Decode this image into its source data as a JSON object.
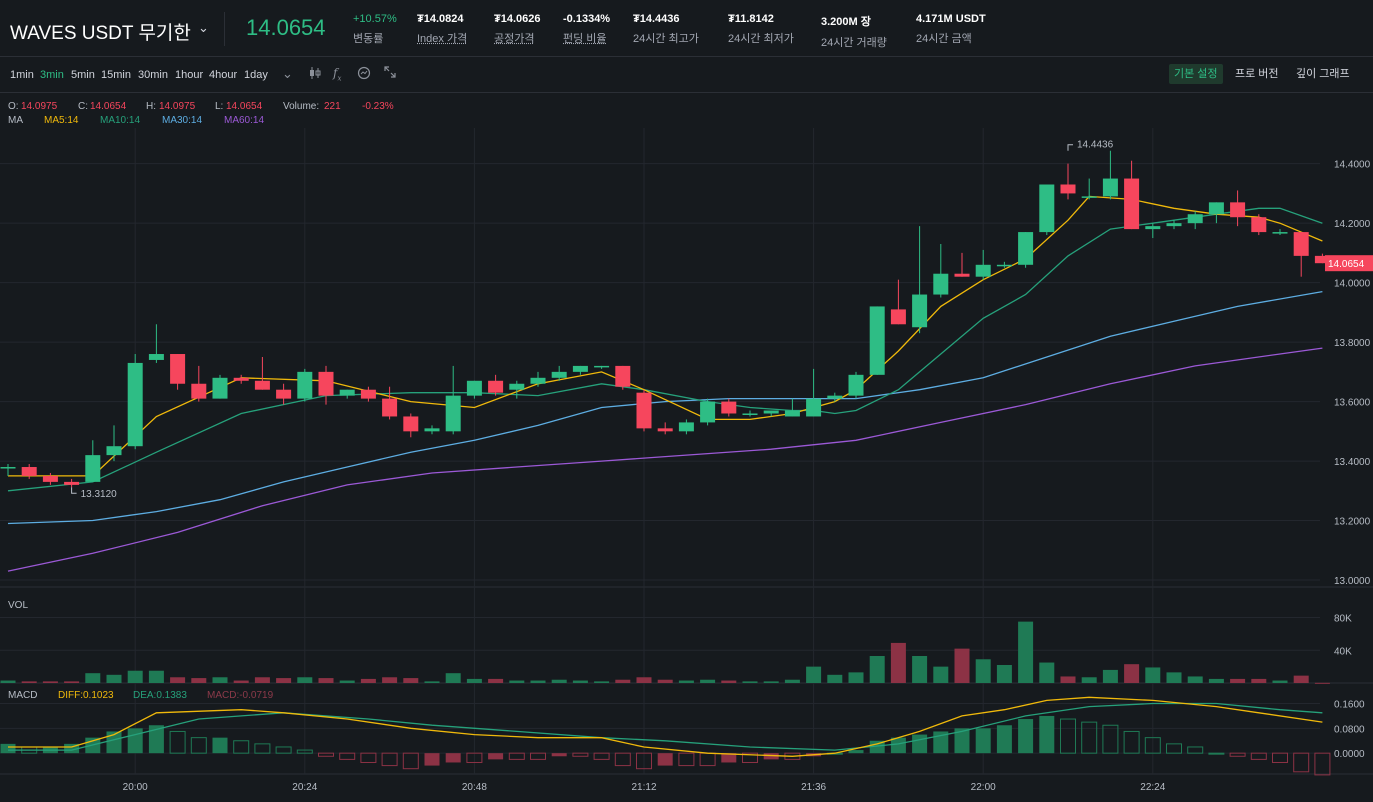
{
  "header": {
    "symbol": "WAVES USDT 무기한",
    "last_price": "14.0654",
    "stats": [
      {
        "value": "+10.57%",
        "label": "변동률"
      },
      {
        "value": "₮14.0824",
        "label": "Index 가격"
      },
      {
        "value": "₮14.0626",
        "label": "공정가격"
      },
      {
        "value": "-0.1334%",
        "label": "펀딩 비율"
      },
      {
        "value": "₮14.4436",
        "label": "24시간 최고가"
      },
      {
        "value": "₮11.8142",
        "label": "24시간 최저가"
      },
      {
        "value": "3.200M 장",
        "label": "24시간 거래량"
      },
      {
        "value": "4.171M USDT",
        "label": "24시간 금액"
      }
    ]
  },
  "toolbar": {
    "timeframes": [
      "1min",
      "3min",
      "5min",
      "15min",
      "30min",
      "1hour",
      "4hour",
      "1day"
    ],
    "active_timeframe": "3min",
    "icons": [
      "chevron-down-icon",
      "candle-type-icon",
      "indicator-fx-icon",
      "settings-icon",
      "fullscreen-icon"
    ],
    "views": [
      "기본 설정",
      "프로 버전",
      "깊이 그래프"
    ],
    "active_view": "기본 설정"
  },
  "ohlc_legend": {
    "o_label": "O:",
    "o": "14.0975",
    "c_label": "C:",
    "c": "14.0654",
    "h_label": "H:",
    "h": "14.0975",
    "l_label": "L:",
    "l": "14.0654",
    "vol_label": "Volume:",
    "vol": "221",
    "change": "-0.23%"
  },
  "ma_legend": {
    "label": "MA",
    "items": [
      {
        "text": "MA5:14",
        "color": "#f0b90b"
      },
      {
        "text": "MA10:14",
        "color": "#26a17b"
      },
      {
        "text": "MA30:14",
        "color": "#5dade2"
      },
      {
        "text": "MA60:14",
        "color": "#9b59d6"
      }
    ]
  },
  "vol_label": "VOL",
  "macd_legend": {
    "label": "MACD",
    "diff": "DIFF:0.1023",
    "dea": "DEA:0.1383",
    "macd": "MACD:-0.0719"
  },
  "colors": {
    "up": "#2ebd85",
    "down": "#f6465d",
    "ma5": "#f0b90b",
    "ma10": "#26a17b",
    "ma30": "#5dade2",
    "ma60": "#9b59d6",
    "diff": "#f0b90b",
    "dea": "#26a17b",
    "grid": "#23272e",
    "axis_text": "#b7bdc6"
  },
  "chart_data": {
    "type": "candlestick",
    "price_axis": {
      "ticks": [
        13.0,
        13.2,
        13.4,
        13.6,
        13.8,
        14.0,
        14.2,
        14.4
      ],
      "tick_labels": [
        "13.0000",
        "13.2000",
        "13.4000",
        "13.6000",
        "13.8000",
        "14.0000",
        "14.2000",
        "14.4000"
      ],
      "ylim": [
        12.99,
        14.52
      ]
    },
    "volume_axis": {
      "ticks": [
        40000,
        80000
      ],
      "tick_labels": [
        "40K",
        "80K"
      ],
      "ylim": [
        0,
        110000
      ]
    },
    "macd_axis": {
      "ticks": [
        0.0,
        0.08,
        0.16
      ],
      "tick_labels": [
        "0.0000",
        "0.0800",
        "0.1600"
      ],
      "ylim": [
        -0.08,
        0.21
      ]
    },
    "time_axis": {
      "labels": [
        "20:00",
        "20:24",
        "20:48",
        "21:12",
        "21:36",
        "22:00",
        "22:24"
      ],
      "label_candle_index": [
        6,
        14,
        22,
        30,
        38,
        46,
        54
      ]
    },
    "last_price_label": "14.0654",
    "high_marker": {
      "label": "14.4436",
      "value": 14.4436,
      "candle_index": 50
    },
    "low_marker": {
      "label": "13.3120",
      "value": 13.312,
      "candle_index": 3
    },
    "candles": [
      {
        "o": 13.38,
        "h": 13.39,
        "l": 13.35,
        "c": 13.38,
        "v": 3000
      },
      {
        "o": 13.38,
        "h": 13.39,
        "l": 13.34,
        "c": 13.35,
        "v": 2000
      },
      {
        "o": 13.35,
        "h": 13.36,
        "l": 13.32,
        "c": 13.33,
        "v": 2000
      },
      {
        "o": 13.33,
        "h": 13.34,
        "l": 13.312,
        "c": 13.32,
        "v": 2000
      },
      {
        "o": 13.33,
        "h": 13.47,
        "l": 13.33,
        "c": 13.42,
        "v": 12000
      },
      {
        "o": 13.42,
        "h": 13.52,
        "l": 13.4,
        "c": 13.45,
        "v": 10000
      },
      {
        "o": 13.45,
        "h": 13.76,
        "l": 13.44,
        "c": 13.73,
        "v": 15000
      },
      {
        "o": 13.74,
        "h": 13.86,
        "l": 13.73,
        "c": 13.76,
        "v": 15000
      },
      {
        "o": 13.76,
        "h": 13.76,
        "l": 13.64,
        "c": 13.66,
        "v": 7000
      },
      {
        "o": 13.66,
        "h": 13.72,
        "l": 13.6,
        "c": 13.61,
        "v": 6000
      },
      {
        "o": 13.61,
        "h": 13.69,
        "l": 13.61,
        "c": 13.68,
        "v": 7000
      },
      {
        "o": 13.68,
        "h": 13.69,
        "l": 13.66,
        "c": 13.67,
        "v": 3000
      },
      {
        "o": 13.67,
        "h": 13.75,
        "l": 13.64,
        "c": 13.64,
        "v": 7000
      },
      {
        "o": 13.64,
        "h": 13.66,
        "l": 13.59,
        "c": 13.61,
        "v": 6000
      },
      {
        "o": 13.61,
        "h": 13.71,
        "l": 13.6,
        "c": 13.7,
        "v": 7000
      },
      {
        "o": 13.7,
        "h": 13.72,
        "l": 13.59,
        "c": 13.62,
        "v": 6000
      },
      {
        "o": 13.62,
        "h": 13.64,
        "l": 13.61,
        "c": 13.64,
        "v": 3000
      },
      {
        "o": 13.64,
        "h": 13.65,
        "l": 13.6,
        "c": 13.61,
        "v": 5000
      },
      {
        "o": 13.61,
        "h": 13.65,
        "l": 13.54,
        "c": 13.55,
        "v": 7000
      },
      {
        "o": 13.55,
        "h": 13.56,
        "l": 13.48,
        "c": 13.5,
        "v": 6000
      },
      {
        "o": 13.5,
        "h": 13.52,
        "l": 13.49,
        "c": 13.51,
        "v": 2000
      },
      {
        "o": 13.5,
        "h": 13.72,
        "l": 13.49,
        "c": 13.62,
        "v": 12000
      },
      {
        "o": 13.62,
        "h": 13.67,
        "l": 13.61,
        "c": 13.67,
        "v": 5000
      },
      {
        "o": 13.67,
        "h": 13.69,
        "l": 13.62,
        "c": 13.63,
        "v": 5000
      },
      {
        "o": 13.64,
        "h": 13.67,
        "l": 13.61,
        "c": 13.66,
        "v": 3000
      },
      {
        "o": 13.66,
        "h": 13.7,
        "l": 13.65,
        "c": 13.68,
        "v": 3000
      },
      {
        "o": 13.68,
        "h": 13.72,
        "l": 13.67,
        "c": 13.7,
        "v": 4000
      },
      {
        "o": 13.7,
        "h": 13.72,
        "l": 13.69,
        "c": 13.72,
        "v": 3000
      },
      {
        "o": 13.72,
        "h": 13.72,
        "l": 13.71,
        "c": 13.72,
        "v": 2000
      },
      {
        "o": 13.72,
        "h": 13.72,
        "l": 13.64,
        "c": 13.65,
        "v": 4000
      },
      {
        "o": 13.63,
        "h": 13.64,
        "l": 13.5,
        "c": 13.51,
        "v": 7000
      },
      {
        "o": 13.51,
        "h": 13.53,
        "l": 13.49,
        "c": 13.5,
        "v": 4000
      },
      {
        "o": 13.5,
        "h": 13.54,
        "l": 13.49,
        "c": 13.53,
        "v": 3000
      },
      {
        "o": 13.53,
        "h": 13.61,
        "l": 13.52,
        "c": 13.6,
        "v": 4000
      },
      {
        "o": 13.6,
        "h": 13.61,
        "l": 13.55,
        "c": 13.56,
        "v": 3000
      },
      {
        "o": 13.56,
        "h": 13.57,
        "l": 13.55,
        "c": 13.56,
        "v": 2000
      },
      {
        "o": 13.56,
        "h": 13.57,
        "l": 13.55,
        "c": 13.57,
        "v": 2000
      },
      {
        "o": 13.55,
        "h": 13.61,
        "l": 13.55,
        "c": 13.57,
        "v": 4000
      },
      {
        "o": 13.55,
        "h": 13.71,
        "l": 13.55,
        "c": 13.61,
        "v": 20000
      },
      {
        "o": 13.61,
        "h": 13.63,
        "l": 13.6,
        "c": 13.62,
        "v": 10000
      },
      {
        "o": 13.62,
        "h": 13.7,
        "l": 13.61,
        "c": 13.69,
        "v": 13000
      },
      {
        "o": 13.69,
        "h": 13.92,
        "l": 13.69,
        "c": 13.92,
        "v": 33000
      },
      {
        "o": 13.91,
        "h": 14.01,
        "l": 13.86,
        "c": 13.86,
        "v": 49000
      },
      {
        "o": 13.85,
        "h": 14.19,
        "l": 13.83,
        "c": 13.96,
        "v": 33000
      },
      {
        "o": 13.96,
        "h": 14.13,
        "l": 13.95,
        "c": 14.03,
        "v": 20000
      },
      {
        "o": 14.03,
        "h": 14.1,
        "l": 14.02,
        "c": 14.02,
        "v": 42000
      },
      {
        "o": 14.02,
        "h": 14.11,
        "l": 14.01,
        "c": 14.06,
        "v": 29000
      },
      {
        "o": 14.06,
        "h": 14.07,
        "l": 14.05,
        "c": 14.06,
        "v": 22000
      },
      {
        "o": 14.06,
        "h": 14.17,
        "l": 14.05,
        "c": 14.17,
        "v": 75000
      },
      {
        "o": 14.17,
        "h": 14.32,
        "l": 14.16,
        "c": 14.33,
        "v": 25000
      },
      {
        "o": 14.33,
        "h": 14.4,
        "l": 14.28,
        "c": 14.3,
        "v": 8000
      },
      {
        "o": 14.29,
        "h": 14.35,
        "l": 14.28,
        "c": 14.29,
        "v": 7000
      },
      {
        "o": 14.29,
        "h": 14.4436,
        "l": 14.28,
        "c": 14.35,
        "v": 16000
      },
      {
        "o": 14.35,
        "h": 14.41,
        "l": 14.18,
        "c": 14.18,
        "v": 23000
      },
      {
        "o": 14.18,
        "h": 14.2,
        "l": 14.15,
        "c": 14.19,
        "v": 19000
      },
      {
        "o": 14.19,
        "h": 14.21,
        "l": 14.18,
        "c": 14.2,
        "v": 13000
      },
      {
        "o": 14.2,
        "h": 14.24,
        "l": 14.18,
        "c": 14.23,
        "v": 8000
      },
      {
        "o": 14.23,
        "h": 14.27,
        "l": 14.2,
        "c": 14.27,
        "v": 5000
      },
      {
        "o": 14.27,
        "h": 14.31,
        "l": 14.19,
        "c": 14.22,
        "v": 5000
      },
      {
        "o": 14.22,
        "h": 14.23,
        "l": 14.16,
        "c": 14.17,
        "v": 5000
      },
      {
        "o": 14.17,
        "h": 14.18,
        "l": 14.16,
        "c": 14.17,
        "v": 3000
      },
      {
        "o": 14.17,
        "h": 14.17,
        "l": 14.02,
        "c": 14.09,
        "v": 9000
      },
      {
        "o": 14.09,
        "h": 14.0975,
        "l": 14.0654,
        "c": 14.0654,
        "v": 221
      }
    ],
    "ma5": [
      [
        0,
        13.35
      ],
      [
        4,
        13.35
      ],
      [
        7,
        13.55
      ],
      [
        11,
        13.68
      ],
      [
        15,
        13.67
      ],
      [
        19,
        13.6
      ],
      [
        22,
        13.58
      ],
      [
        25,
        13.66
      ],
      [
        28,
        13.7
      ],
      [
        30,
        13.64
      ],
      [
        33,
        13.54
      ],
      [
        35,
        13.54
      ],
      [
        37,
        13.56
      ],
      [
        38,
        13.58
      ],
      [
        39,
        13.6
      ],
      [
        40,
        13.64
      ],
      [
        42,
        13.77
      ],
      [
        44,
        13.92
      ],
      [
        46,
        14.01
      ],
      [
        48,
        14.08
      ],
      [
        50,
        14.21
      ],
      [
        51,
        14.29
      ],
      [
        53,
        14.28
      ],
      [
        55,
        14.25
      ],
      [
        57,
        14.23
      ],
      [
        59,
        14.22
      ],
      [
        60,
        14.2
      ],
      [
        62,
        14.14
      ]
    ],
    "ma10": [
      [
        0,
        13.3
      ],
      [
        4,
        13.33
      ],
      [
        7,
        13.43
      ],
      [
        11,
        13.56
      ],
      [
        15,
        13.62
      ],
      [
        19,
        13.63
      ],
      [
        22,
        13.63
      ],
      [
        25,
        13.62
      ],
      [
        28,
        13.66
      ],
      [
        30,
        13.64
      ],
      [
        33,
        13.6
      ],
      [
        35,
        13.58
      ],
      [
        37,
        13.57
      ],
      [
        38,
        13.57
      ],
      [
        39,
        13.56
      ],
      [
        40,
        13.57
      ],
      [
        42,
        13.64
      ],
      [
        44,
        13.76
      ],
      [
        46,
        13.88
      ],
      [
        48,
        13.96
      ],
      [
        50,
        14.09
      ],
      [
        52,
        14.18
      ],
      [
        55,
        14.21
      ],
      [
        57,
        14.23
      ],
      [
        59,
        14.25
      ],
      [
        60,
        14.25
      ],
      [
        62,
        14.2
      ]
    ],
    "ma30": [
      [
        0,
        13.19
      ],
      [
        4,
        13.2
      ],
      [
        7,
        13.23
      ],
      [
        10,
        13.27
      ],
      [
        13,
        13.33
      ],
      [
        16,
        13.38
      ],
      [
        19,
        13.43
      ],
      [
        22,
        13.47
      ],
      [
        25,
        13.52
      ],
      [
        28,
        13.58
      ],
      [
        31,
        13.6
      ],
      [
        34,
        13.61
      ],
      [
        37,
        13.61
      ],
      [
        40,
        13.61
      ],
      [
        43,
        13.64
      ],
      [
        46,
        13.68
      ],
      [
        49,
        13.75
      ],
      [
        52,
        13.82
      ],
      [
        55,
        13.87
      ],
      [
        58,
        13.92
      ],
      [
        62,
        13.97
      ]
    ],
    "ma60": [
      [
        0,
        13.03
      ],
      [
        4,
        13.09
      ],
      [
        8,
        13.16
      ],
      [
        12,
        13.25
      ],
      [
        16,
        13.32
      ],
      [
        20,
        13.36
      ],
      [
        24,
        13.38
      ],
      [
        28,
        13.4
      ],
      [
        32,
        13.42
      ],
      [
        36,
        13.44
      ],
      [
        40,
        13.47
      ],
      [
        44,
        13.53
      ],
      [
        48,
        13.59
      ],
      [
        52,
        13.66
      ],
      [
        56,
        13.72
      ],
      [
        60,
        13.76
      ],
      [
        62,
        13.78
      ]
    ],
    "macd_hist": [
      0.03,
      0.02,
      0.02,
      0.03,
      0.05,
      0.07,
      0.08,
      0.09,
      0.07,
      0.05,
      0.05,
      0.04,
      0.03,
      0.02,
      0.01,
      -0.01,
      -0.02,
      -0.03,
      -0.04,
      -0.05,
      -0.04,
      -0.03,
      -0.03,
      -0.02,
      -0.02,
      -0.02,
      -0.01,
      -0.01,
      -0.02,
      -0.04,
      -0.05,
      -0.04,
      -0.04,
      -0.04,
      -0.03,
      -0.03,
      -0.02,
      -0.02,
      -0.01,
      0.0,
      0.01,
      0.04,
      0.05,
      0.06,
      0.07,
      0.08,
      0.08,
      0.09,
      0.11,
      0.12,
      0.11,
      0.1,
      0.09,
      0.07,
      0.05,
      0.03,
      0.02,
      0.0,
      -0.01,
      -0.02,
      -0.03,
      -0.06,
      -0.07
    ],
    "diff": [
      [
        0,
        0.02
      ],
      [
        3,
        0.02
      ],
      [
        5,
        0.06
      ],
      [
        7,
        0.13
      ],
      [
        11,
        0.14
      ],
      [
        13,
        0.13
      ],
      [
        16,
        0.11
      ],
      [
        19,
        0.08
      ],
      [
        22,
        0.06
      ],
      [
        25,
        0.05
      ],
      [
        28,
        0.05
      ],
      [
        30,
        0.02
      ],
      [
        33,
        0.0
      ],
      [
        37,
        -0.01
      ],
      [
        39,
        0.0
      ],
      [
        41,
        0.03
      ],
      [
        43,
        0.07
      ],
      [
        45,
        0.12
      ],
      [
        47,
        0.14
      ],
      [
        49,
        0.17
      ],
      [
        51,
        0.18
      ],
      [
        54,
        0.17
      ],
      [
        57,
        0.15
      ],
      [
        59,
        0.13
      ],
      [
        62,
        0.1
      ]
    ],
    "dea": [
      [
        0,
        0.01
      ],
      [
        3,
        0.01
      ],
      [
        6,
        0.06
      ],
      [
        9,
        0.11
      ],
      [
        13,
        0.13
      ],
      [
        17,
        0.11
      ],
      [
        20,
        0.09
      ],
      [
        24,
        0.07
      ],
      [
        28,
        0.05
      ],
      [
        31,
        0.04
      ],
      [
        35,
        0.02
      ],
      [
        39,
        0.01
      ],
      [
        42,
        0.03
      ],
      [
        45,
        0.07
      ],
      [
        48,
        0.12
      ],
      [
        51,
        0.15
      ],
      [
        54,
        0.16
      ],
      [
        57,
        0.16
      ],
      [
        60,
        0.14
      ],
      [
        62,
        0.13
      ]
    ]
  }
}
